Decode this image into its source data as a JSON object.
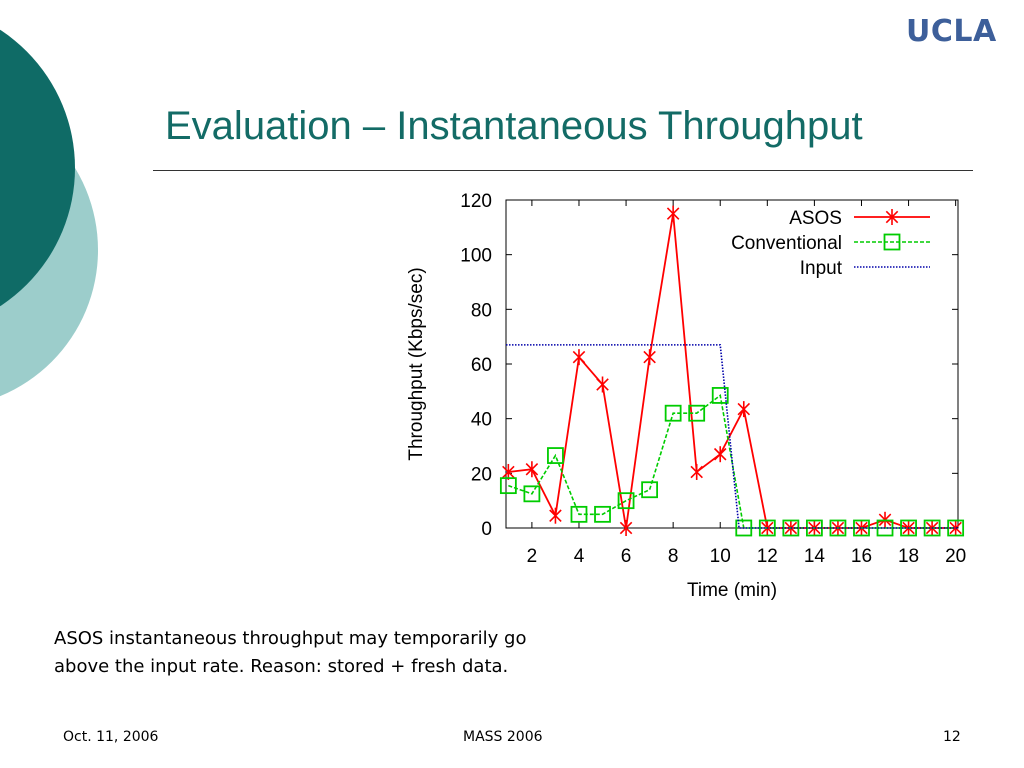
{
  "slide": {
    "logo": "UCLA",
    "title": "Evaluation – Instantaneous Throughput",
    "caption_line1": "ASOS instantaneous throughput may temporarily go",
    "caption_line2": "above the input rate. Reason: stored + fresh data.",
    "footer_left": "Oct. 11, 2006",
    "footer_center": "MASS 2006",
    "footer_right": "12"
  },
  "colors": {
    "teal_dark": "#0f6b66",
    "teal_light": "#9ccdcb",
    "title": "#136b66",
    "asos": "#ff0000",
    "conventional": "#00cc00",
    "input": "#0000aa"
  },
  "chart_data": {
    "type": "line",
    "title": "",
    "xlabel": "Time (min)",
    "ylabel": "Throughput (Kbps/sec)",
    "xlim": [
      0.9,
      20.1
    ],
    "ylim": [
      0,
      120
    ],
    "xticks": [
      2,
      4,
      6,
      8,
      10,
      12,
      14,
      16,
      18,
      20
    ],
    "yticks": [
      0,
      20,
      40,
      60,
      80,
      100,
      120
    ],
    "legend_position": "top-right",
    "grid": false,
    "series": [
      {
        "name": "ASOS",
        "style": "solid",
        "marker": "asterisk",
        "points": [
          [
            1,
            20.5
          ],
          [
            2,
            21.5
          ],
          [
            3,
            4.5
          ],
          [
            4,
            62.5
          ],
          [
            5,
            52.5
          ],
          [
            6,
            0
          ],
          [
            7,
            62.5
          ],
          [
            8,
            115
          ],
          [
            9,
            20.5
          ],
          [
            10,
            27
          ],
          [
            11,
            43.5
          ],
          [
            12,
            0
          ],
          [
            13,
            0
          ],
          [
            14,
            0
          ],
          [
            15,
            0
          ],
          [
            16,
            0
          ],
          [
            17,
            3
          ],
          [
            18,
            0
          ],
          [
            19,
            0
          ],
          [
            20,
            0
          ]
        ]
      },
      {
        "name": "Conventional",
        "style": "dashed",
        "marker": "square",
        "points": [
          [
            1,
            15.5
          ],
          [
            2,
            12.5
          ],
          [
            3,
            26.5
          ],
          [
            4,
            5
          ],
          [
            5,
            5
          ],
          [
            6,
            10
          ],
          [
            7,
            14
          ],
          [
            8,
            42
          ],
          [
            9,
            42
          ],
          [
            10,
            48.5
          ],
          [
            11,
            0
          ],
          [
            12,
            0
          ],
          [
            13,
            0
          ],
          [
            14,
            0
          ],
          [
            15,
            0
          ],
          [
            16,
            0
          ],
          [
            17,
            0
          ],
          [
            18,
            0
          ],
          [
            19,
            0
          ],
          [
            20,
            0
          ]
        ]
      },
      {
        "name": "Input",
        "style": "dotted",
        "marker": "none",
        "points": [
          [
            0.9,
            67
          ],
          [
            10,
            67
          ],
          [
            10.8,
            0
          ],
          [
            20.1,
            0
          ]
        ]
      }
    ]
  }
}
